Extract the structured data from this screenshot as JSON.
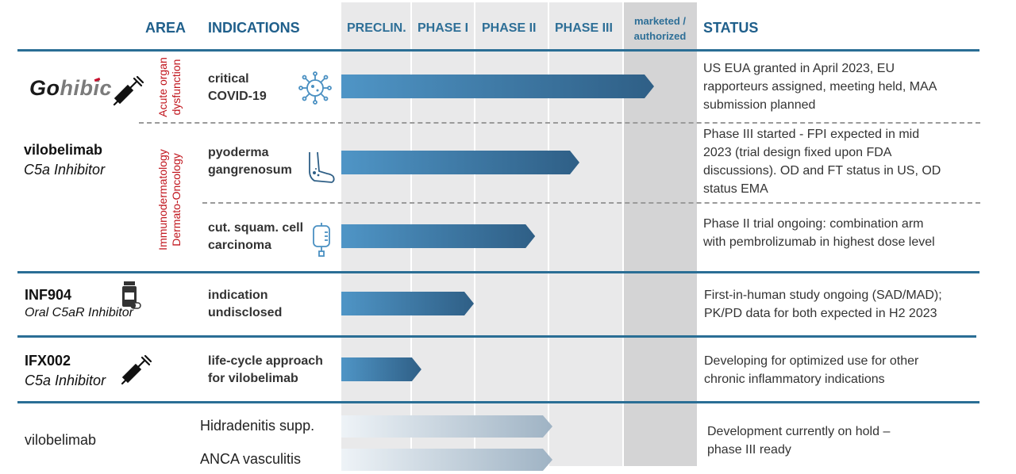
{
  "headers": {
    "area": "AREA",
    "indications": "INDICATIONS",
    "preclin": "PRECLIN.",
    "phase1": "PHASE I",
    "phase2": "PHASE II",
    "phase3": "PHASE III",
    "marketed_line1": "marketed /",
    "marketed_line2": "authorized",
    "status": "STATUS"
  },
  "areas": {
    "acute_line1": "Acute organ",
    "acute_line2": "dysfunction",
    "immuno_line1": "Immunodermatology",
    "immuno_line2": "Dermato-Oncology"
  },
  "products": {
    "gohibic_go": "Go",
    "gohibic_hibic": "hibic",
    "vilobelimab": "vilobelimab",
    "vilobelimab_sub": "C5a Inhibitor",
    "inf904": "INF904",
    "inf904_sub": "Oral C5aR Inhibitor",
    "ifx002": "IFX002",
    "ifx002_sub": "C5a Inhibitor",
    "vilobelimab_hold": "vilobelimab"
  },
  "rows": [
    {
      "ind1": "critical",
      "ind2": "COVID-19",
      "status": [
        "US EUA granted in April 2023, EU",
        "rapporteurs assigned, meeting held, MAA",
        "submission planned"
      ],
      "progress_stage": 4.0,
      "icon": "virus-icon"
    },
    {
      "ind1": "pyoderma",
      "ind2": "gangrenosum",
      "status": [
        "Phase III started - FPI expected in mid",
        "2023 (trial design fixed upon FDA",
        "discussions). OD and FT status in US, OD",
        "status EMA"
      ],
      "progress_stage": 3.0,
      "icon": "foot-icon"
    },
    {
      "ind1": "cut. squam. cell",
      "ind2": "carcinoma",
      "status": [
        "Phase II trial ongoing: combination arm",
        "with pembrolizumab in highest dose level"
      ],
      "progress_stage": 2.4,
      "icon": "iv-bag-icon"
    },
    {
      "ind1": "indication",
      "ind2": "undisclosed",
      "status": [
        "First-in-human study ongoing (SAD/MAD);",
        "PK/PD data for both expected in H2 2023"
      ],
      "progress_stage": 1.5,
      "icon": "pill-bottle-icon"
    },
    {
      "ind1": "life-cycle approach",
      "ind2": "for vilobelimab",
      "status": [
        "Developing for optimized use for other",
        "chronic inflammatory indications"
      ],
      "progress_stage": 0.7,
      "icon": "syringe-icon"
    }
  ],
  "hold": {
    "ind1": "Hidradenitis supp.",
    "ind2": "ANCA vasculitis",
    "status1": "Development currently on hold –",
    "status2": "phase III ready",
    "progress_stage": 3.0
  },
  "colors": {
    "bar_dark": "#2f5f86",
    "bar_light": "#4f95c6",
    "rule": "#2a6e95",
    "area_red": "#c0141c",
    "gohibic_red": "#c8102e"
  }
}
